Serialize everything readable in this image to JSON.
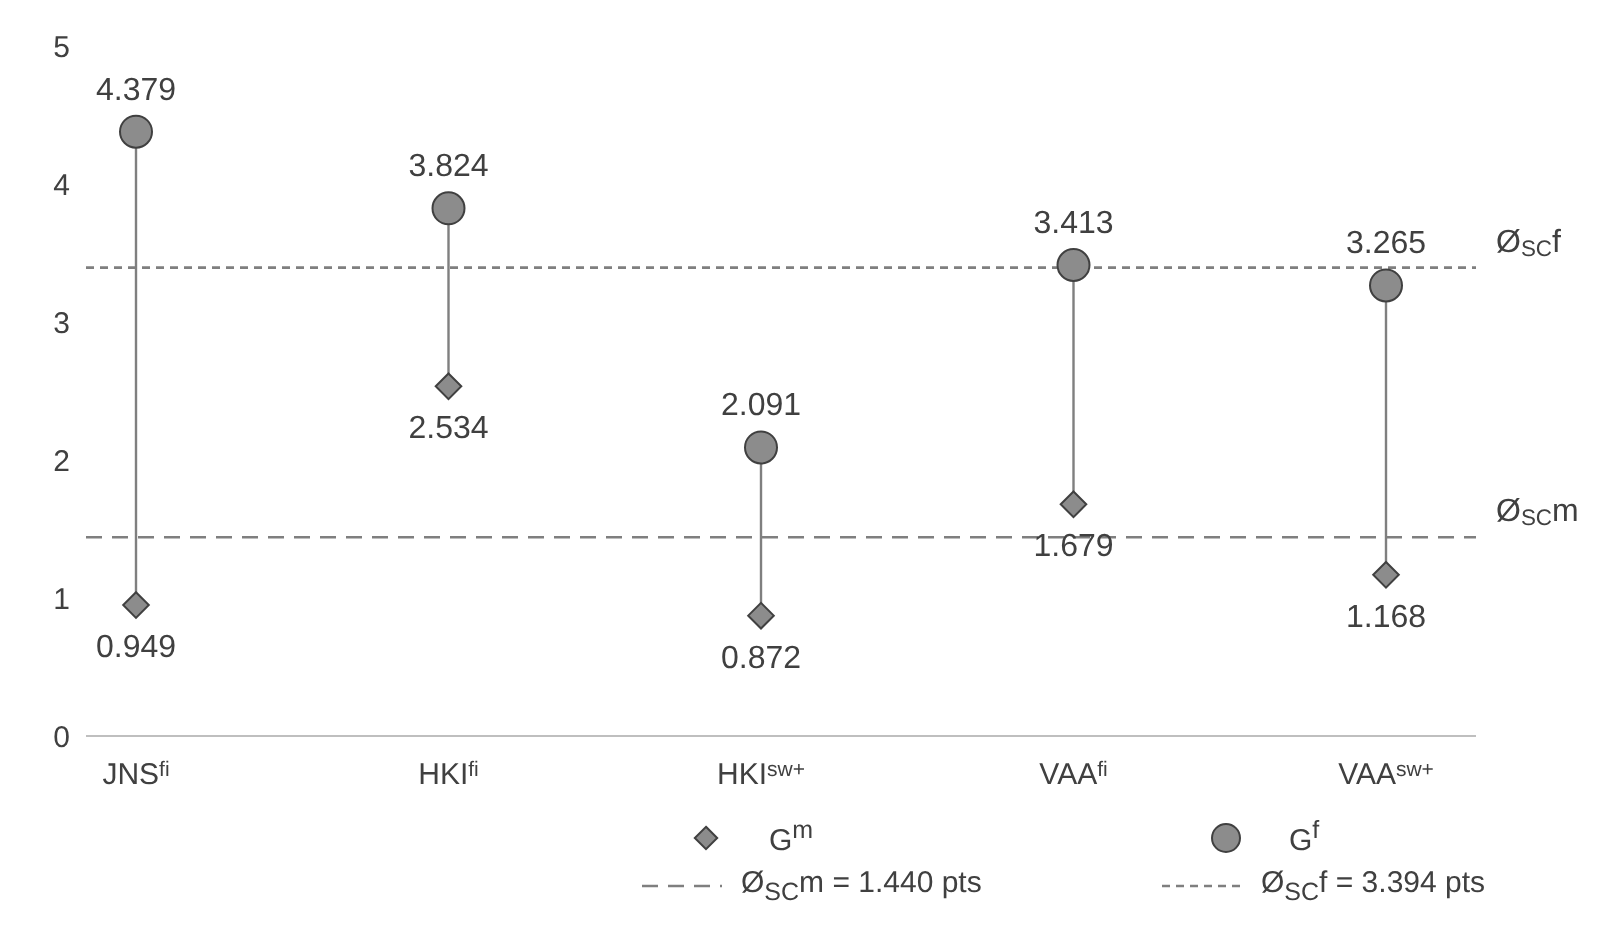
{
  "chart_data": {
    "type": "scatter",
    "categories": [
      "JNS$^{fi}$",
      "HKI$^{fi}$",
      "HKI$^{sw+}$",
      "VAA$^{fi}$",
      "VAA$^{sw+}$"
    ],
    "series": [
      {
        "name": "G$^{m}$",
        "color": "#8c8c8c",
        "marker": "diamond",
        "values": [
          0.949,
          2.534,
          0.872,
          1.679,
          1.168
        ]
      },
      {
        "name": "G$^{f}$",
        "color": "#8c8c8c",
        "marker": "circle",
        "values": [
          4.379,
          3.824,
          2.091,
          3.413,
          3.265
        ]
      }
    ],
    "ylim": [
      0,
      5
    ],
    "yticks": [
      0,
      1,
      2,
      3,
      4,
      5
    ],
    "grid": false,
    "legend": "bottom",
    "data_labels": true,
    "ref_lines": [
      {
        "axis": "y",
        "value": 1.44,
        "label": "Ø$_{SC}$m",
        "color": "#7f7f7f",
        "line_style": "dashed"
      },
      {
        "axis": "y",
        "value": 3.394,
        "label": "Ø$_{SC}$f",
        "color": "#7f7f7f",
        "line_style": "dotted"
      }
    ],
    "annotations": [
      "Ø$_{SC}$m = 1.440 pts",
      "Ø$_{SC}$f = 3.394 pts"
    ]
  }
}
